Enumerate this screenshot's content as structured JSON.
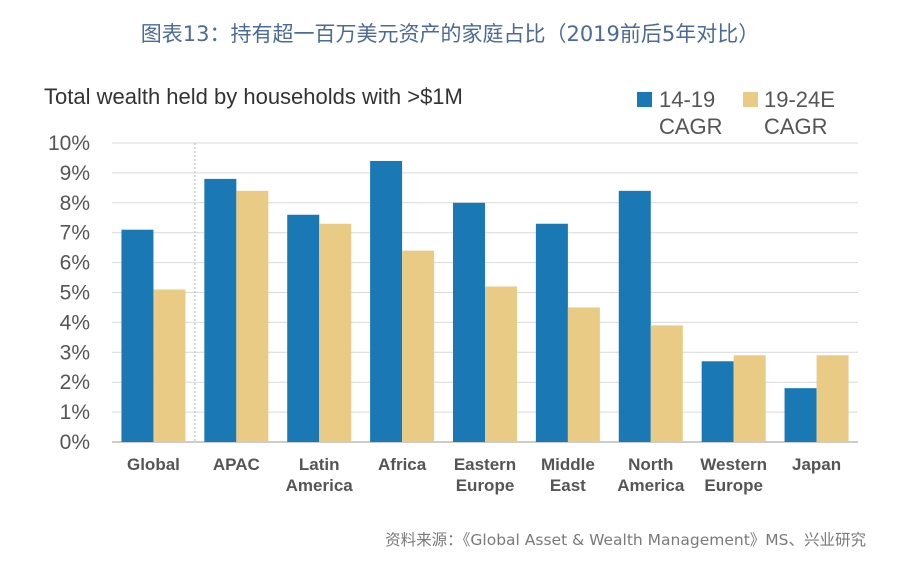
{
  "page_title": "图表13：持有超一百万美元资产的家庭占比（2019前后5年对比）",
  "source": "资料来源：《Global Asset & Wealth Management》MS、兴业研究",
  "chart_data": {
    "type": "bar",
    "title": "Total wealth held by households with >$1M",
    "xlabel": "",
    "ylabel": "",
    "ylim": [
      0,
      10
    ],
    "yticks": [
      "0%",
      "1%",
      "2%",
      "3%",
      "4%",
      "5%",
      "6%",
      "7%",
      "8%",
      "9%",
      "10%"
    ],
    "grid": true,
    "legend_position": "top-right",
    "categories": [
      [
        "Global"
      ],
      [
        "APAC"
      ],
      [
        "Latin",
        "America"
      ],
      [
        "Africa"
      ],
      [
        "Eastern",
        "Europe"
      ],
      [
        "Middle",
        "East"
      ],
      [
        "North",
        "America"
      ],
      [
        "Western",
        "Europe"
      ],
      [
        "Japan"
      ]
    ],
    "series": [
      {
        "name": "14-19 CAGR",
        "legend_lines": [
          "14-19",
          "CAGR"
        ],
        "color": "#1a78b4",
        "values": [
          7.1,
          8.8,
          7.6,
          9.4,
          8.0,
          7.3,
          8.4,
          2.7,
          1.8
        ]
      },
      {
        "name": "19-24E CAGR",
        "legend_lines": [
          "19-24E",
          "CAGR"
        ],
        "color": "#eacb85",
        "values": [
          5.1,
          8.4,
          7.3,
          6.4,
          5.2,
          4.5,
          3.9,
          2.9,
          2.9
        ]
      }
    ]
  }
}
